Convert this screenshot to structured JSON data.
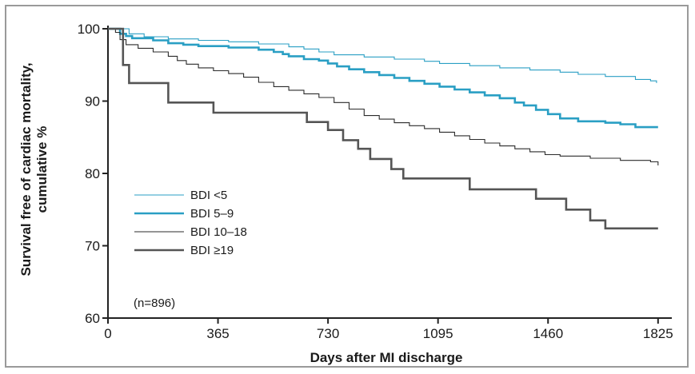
{
  "chart_data": {
    "type": "line",
    "xlabel": "Days after MI discharge",
    "ylabel_lines": [
      "Survival free of cardiac mortality,",
      "cumulative %"
    ],
    "xlim": [
      0,
      1860
    ],
    "ylim": [
      60,
      100
    ],
    "xticks": [
      0,
      365,
      730,
      1095,
      1460,
      1825
    ],
    "yticks": [
      60,
      70,
      80,
      90,
      100
    ],
    "note": "(n=896)",
    "legend_position": "bottom-left",
    "series": [
      {
        "name": "BDI <5",
        "color": "#2a9fc4",
        "line_style": "thin",
        "points": [
          [
            0,
            100
          ],
          [
            50,
            100
          ],
          [
            70,
            99.3
          ],
          [
            120,
            98.9
          ],
          [
            200,
            98.6
          ],
          [
            300,
            98.4
          ],
          [
            400,
            98.2
          ],
          [
            500,
            97.9
          ],
          [
            600,
            97.5
          ],
          [
            650,
            97.2
          ],
          [
            700,
            96.8
          ],
          [
            750,
            96.4
          ],
          [
            850,
            96.1
          ],
          [
            950,
            95.8
          ],
          [
            1050,
            95.5
          ],
          [
            1100,
            95.2
          ],
          [
            1200,
            94.9
          ],
          [
            1300,
            94.6
          ],
          [
            1400,
            94.3
          ],
          [
            1500,
            94.0
          ],
          [
            1560,
            93.7
          ],
          [
            1650,
            93.4
          ],
          [
            1750,
            93.0
          ],
          [
            1800,
            92.8
          ],
          [
            1820,
            92.5
          ]
        ]
      },
      {
        "name": "BDI 5–9",
        "color": "#2a9fc4",
        "line_style": "thick",
        "points": [
          [
            0,
            100
          ],
          [
            30,
            100
          ],
          [
            40,
            99.3
          ],
          [
            60,
            99.0
          ],
          [
            80,
            98.7
          ],
          [
            150,
            98.4
          ],
          [
            200,
            98.0
          ],
          [
            250,
            97.8
          ],
          [
            300,
            97.6
          ],
          [
            400,
            97.4
          ],
          [
            500,
            97.1
          ],
          [
            550,
            96.8
          ],
          [
            580,
            96.5
          ],
          [
            600,
            96.2
          ],
          [
            650,
            95.8
          ],
          [
            700,
            95.6
          ],
          [
            730,
            95.2
          ],
          [
            760,
            94.8
          ],
          [
            800,
            94.4
          ],
          [
            850,
            94.0
          ],
          [
            900,
            93.6
          ],
          [
            950,
            93.2
          ],
          [
            1000,
            92.8
          ],
          [
            1050,
            92.4
          ],
          [
            1100,
            92.0
          ],
          [
            1150,
            91.6
          ],
          [
            1200,
            91.2
          ],
          [
            1250,
            90.8
          ],
          [
            1300,
            90.4
          ],
          [
            1350,
            89.8
          ],
          [
            1380,
            89.4
          ],
          [
            1420,
            88.8
          ],
          [
            1460,
            88.2
          ],
          [
            1500,
            87.6
          ],
          [
            1560,
            87.2
          ],
          [
            1650,
            87.0
          ],
          [
            1700,
            86.8
          ],
          [
            1750,
            86.4
          ],
          [
            1825,
            86.4
          ]
        ]
      },
      {
        "name": "BDI 10–18",
        "color": "#2b2b2b",
        "line_style": "thin",
        "points": [
          [
            0,
            100
          ],
          [
            25,
            99.5
          ],
          [
            40,
            98.5
          ],
          [
            60,
            97.8
          ],
          [
            100,
            97.3
          ],
          [
            150,
            96.8
          ],
          [
            200,
            96.2
          ],
          [
            230,
            95.6
          ],
          [
            260,
            95.1
          ],
          [
            300,
            94.6
          ],
          [
            350,
            94.2
          ],
          [
            400,
            93.8
          ],
          [
            450,
            93.3
          ],
          [
            500,
            92.6
          ],
          [
            550,
            92.0
          ],
          [
            600,
            91.5
          ],
          [
            650,
            91.0
          ],
          [
            700,
            90.5
          ],
          [
            750,
            89.8
          ],
          [
            800,
            88.9
          ],
          [
            850,
            88.0
          ],
          [
            900,
            87.5
          ],
          [
            950,
            87.0
          ],
          [
            1000,
            86.6
          ],
          [
            1050,
            86.2
          ],
          [
            1100,
            85.7
          ],
          [
            1150,
            85.2
          ],
          [
            1200,
            84.7
          ],
          [
            1250,
            84.2
          ],
          [
            1300,
            83.8
          ],
          [
            1350,
            83.4
          ],
          [
            1400,
            83.0
          ],
          [
            1450,
            82.6
          ],
          [
            1500,
            82.4
          ],
          [
            1600,
            82.1
          ],
          [
            1700,
            81.8
          ],
          [
            1800,
            81.6
          ],
          [
            1825,
            81.1
          ]
        ]
      },
      {
        "name": "BDI ≥19",
        "color": "#555555",
        "line_style": "thick",
        "points": [
          [
            0,
            100
          ],
          [
            40,
            100
          ],
          [
            50,
            95.0
          ],
          [
            70,
            92.5
          ],
          [
            180,
            92.5
          ],
          [
            200,
            89.8
          ],
          [
            330,
            89.8
          ],
          [
            350,
            88.4
          ],
          [
            640,
            88.4
          ],
          [
            660,
            87.1
          ],
          [
            730,
            86.0
          ],
          [
            780,
            84.6
          ],
          [
            830,
            83.4
          ],
          [
            870,
            82.0
          ],
          [
            940,
            80.6
          ],
          [
            980,
            79.3
          ],
          [
            1180,
            79.3
          ],
          [
            1200,
            77.8
          ],
          [
            1400,
            77.8
          ],
          [
            1420,
            76.5
          ],
          [
            1500,
            76.5
          ],
          [
            1520,
            75.0
          ],
          [
            1580,
            75.0
          ],
          [
            1600,
            73.5
          ],
          [
            1650,
            72.4
          ],
          [
            1825,
            72.4
          ]
        ]
      }
    ]
  }
}
